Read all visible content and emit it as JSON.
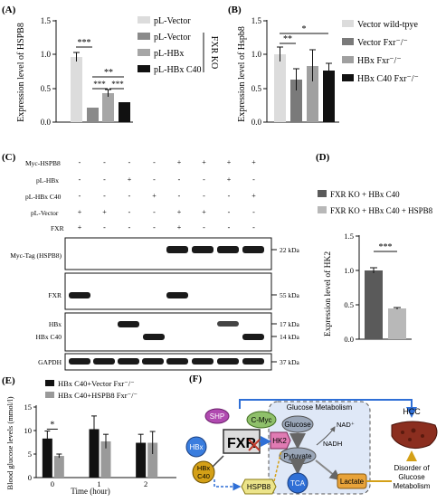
{
  "panel_labels": {
    "A": "(A)",
    "B": "(B)",
    "C": "(C)",
    "D": "(D)",
    "E": "(E)",
    "F": "(F)"
  },
  "panelA": {
    "ylabel": "Expression level of HSPB8",
    "ticks": [
      "0.0",
      "0.5",
      "1.0",
      "1.5"
    ],
    "legend": [
      "pL-Vector",
      "pL-Vector",
      "pL-HBx",
      "pL-HBx C40"
    ],
    "bracket_label": "FXR KO",
    "sig": [
      "***",
      "**",
      "***",
      "***"
    ],
    "colors": [
      "#dcdcdc",
      "#8a8a8a",
      "#a6a6a6",
      "#111111"
    ]
  },
  "panelB": {
    "ylabel": "Expression level of  Hspb8",
    "ticks": [
      "0.0",
      "0.5",
      "1.0",
      "1.5"
    ],
    "legend": [
      "Vector wild-tpye",
      "Vector Fxr⁻/⁻",
      "HBx Fxr⁻/⁻",
      "HBx C40 Fxr⁻/⁻"
    ],
    "sig": [
      "**",
      "*"
    ],
    "colors": [
      "#dcdcdc",
      "#7a7a7a",
      "#a0a0a0",
      "#111111"
    ]
  },
  "panelC": {
    "row_labels": [
      "Myc-HSPB8",
      "pL-HBx",
      "pL-HBx C40",
      "pL-Vector",
      "FXR"
    ],
    "table": [
      [
        "-",
        "-",
        "-",
        "-",
        "+",
        "+",
        "+",
        "+"
      ],
      [
        "-",
        "-",
        "+",
        "-",
        "-",
        "-",
        "+",
        "-"
      ],
      [
        "-",
        "-",
        "-",
        "+",
        "-",
        "-",
        "-",
        "+"
      ],
      [
        "+",
        "+",
        "-",
        "-",
        "+",
        "+",
        "-",
        "-"
      ],
      [
        "+",
        "-",
        "-",
        "-",
        "+",
        "-",
        "-",
        "-"
      ]
    ],
    "blots": [
      {
        "left": "Myc-Tag (HSPB8)",
        "right": "22 kDa"
      },
      {
        "left": "FXR",
        "right": "55 kDa"
      },
      {
        "left": "HBx",
        "left2": "HBx C40",
        "right": "17 kDa",
        "right2": "14 kDa"
      },
      {
        "left": "GAPDH",
        "right": "37 kDa"
      }
    ]
  },
  "panelD": {
    "legend": [
      "FXR KO + HBx C40",
      "FXR KO + HBx C40 + HSPB8"
    ],
    "ylabel": "Expression level of HK2",
    "ticks": [
      "0.0",
      "0.5",
      "1.0",
      "1.5"
    ],
    "sig": "***",
    "colors": [
      "#5a5a5a",
      "#b8b8b8"
    ]
  },
  "chart_data": {
    "type": "bar",
    "title": "",
    "xlabel": "Time (hour)",
    "ylabel": "Blood glucose levels (mmol/l)",
    "categories": [
      "0",
      "1",
      "2"
    ],
    "series": [
      {
        "name": "HBx C40+Vector Fxr⁻/⁻",
        "values": [
          8.3,
          10.3,
          7.4
        ],
        "errors": [
          1.6,
          2.8,
          1.8
        ],
        "color": "#111111"
      },
      {
        "name": "HBx C40+HSPB8 Fxr⁻/⁻",
        "values": [
          4.6,
          7.7,
          7.4
        ],
        "errors": [
          0.4,
          1.5,
          2.4
        ],
        "color": "#9a9a9a"
      }
    ],
    "ylim": [
      0,
      15
    ],
    "yticks": [
      "0",
      "5",
      "10",
      "15"
    ],
    "sig": "*"
  },
  "panelF": {
    "glucose_metabolism": "Glucose Metabolism",
    "glucose": "Glucose",
    "pyruvate": "Pytuvate",
    "tca": "TCA",
    "lactate": "Lactate",
    "nad": "NAD⁺",
    "nadh": "NADH",
    "hk2": "HK2",
    "fxr": "FXR",
    "shp": "SHP",
    "cmyc": "C-Myc",
    "hbx": "HBx",
    "hbx_c40_1": "HBx",
    "hbx_c40_2": "C40",
    "hspb8": "HSPB8",
    "hcc": "HCC",
    "disorder": [
      "Disorder of",
      "Glucose",
      "Metabolism"
    ]
  }
}
